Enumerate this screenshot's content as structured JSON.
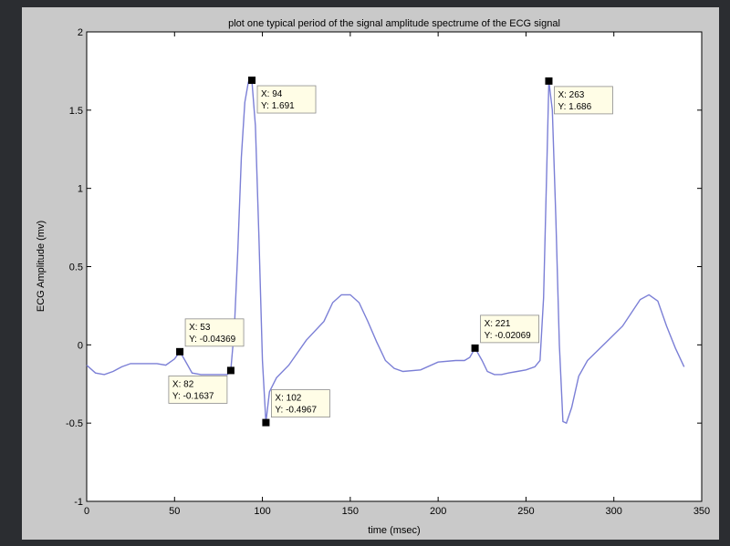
{
  "chart_data": {
    "type": "line",
    "title": "plot one typical period of the signal amplitude spectrume of the  ECG signal",
    "xlabel": "time (msec)",
    "ylabel": "ECG Amplitude  (mv)",
    "xlim": [
      0,
      350
    ],
    "ylim": [
      -1,
      2
    ],
    "xticks": [
      0,
      50,
      100,
      150,
      200,
      250,
      300,
      350
    ],
    "yticks": [
      -1,
      -0.5,
      0,
      0.5,
      1,
      1.5,
      2
    ],
    "xtick_labels": [
      "0",
      "50",
      "100",
      "150",
      "200",
      "250",
      "300",
      "350"
    ],
    "ytick_labels": [
      "-1",
      "-0.5",
      "0",
      "0.5",
      "1",
      "1.5",
      "2"
    ],
    "line_color": "#7b7fd6",
    "grid": false,
    "series": [
      {
        "x": [
          0,
          5,
          10,
          15,
          20,
          25,
          30,
          35,
          40,
          45,
          50,
          53,
          56,
          60,
          65,
          70,
          75,
          80,
          82,
          84,
          86,
          88,
          90,
          92,
          94,
          96,
          98,
          100,
          102,
          104,
          108,
          115,
          125,
          135,
          140,
          145,
          150,
          155,
          160,
          165,
          170,
          175,
          180,
          190,
          200,
          210,
          215,
          218,
          221,
          225,
          228,
          232,
          236,
          240,
          245,
          250,
          255,
          258,
          260,
          262,
          263,
          265,
          267,
          269,
          271,
          273,
          276,
          280,
          285,
          295,
          305,
          315,
          320,
          325,
          330,
          335,
          340
        ],
        "y": [
          -0.13,
          -0.18,
          -0.19,
          -0.17,
          -0.14,
          -0.12,
          -0.12,
          -0.12,
          -0.12,
          -0.13,
          -0.09,
          -0.04369,
          -0.1,
          -0.18,
          -0.19,
          -0.19,
          -0.19,
          -0.19,
          -0.1637,
          0.1,
          0.6,
          1.2,
          1.55,
          1.68,
          1.691,
          1.4,
          0.7,
          -0.1,
          -0.4967,
          -0.3,
          -0.21,
          -0.13,
          0.03,
          0.15,
          0.27,
          0.32,
          0.32,
          0.27,
          0.15,
          0.02,
          -0.1,
          -0.15,
          -0.17,
          -0.16,
          -0.11,
          -0.1,
          -0.1,
          -0.08,
          -0.02069,
          -0.1,
          -0.17,
          -0.19,
          -0.19,
          -0.18,
          -0.17,
          -0.16,
          -0.14,
          -0.1,
          0.3,
          1.2,
          1.686,
          1.5,
          0.8,
          0.0,
          -0.49,
          -0.5,
          -0.4,
          -0.2,
          -0.1,
          0.01,
          0.12,
          0.29,
          0.32,
          0.28,
          0.12,
          -0.02,
          -0.14
        ]
      }
    ],
    "datatips": [
      {
        "x": 53,
        "y": -0.04369,
        "x_text": "X: 53",
        "y_text": "Y: -0.04369",
        "placement": "above-right"
      },
      {
        "x": 82,
        "y": -0.1637,
        "x_text": "X: 82",
        "y_text": "Y: -0.1637",
        "placement": "below-left"
      },
      {
        "x": 94,
        "y": 1.691,
        "x_text": "X: 94",
        "y_text": "Y: 1.691",
        "placement": "below-right"
      },
      {
        "x": 102,
        "y": -0.4967,
        "x_text": "X: 102",
        "y_text": "Y: -0.4967",
        "placement": "above-right"
      },
      {
        "x": 221,
        "y": -0.02069,
        "x_text": "X: 221",
        "y_text": "Y: -0.02069",
        "placement": "above-right"
      },
      {
        "x": 263,
        "y": 1.686,
        "x_text": "X: 263",
        "y_text": "Y: 1.686",
        "placement": "below-right"
      }
    ]
  }
}
